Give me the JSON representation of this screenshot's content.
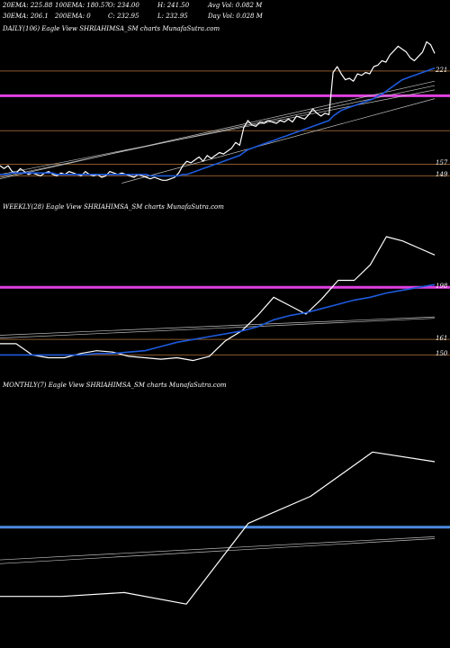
{
  "header": {
    "row1": [
      {
        "key": "ema20",
        "text": "20EMA: 225.88"
      },
      {
        "key": "ema100",
        "text": "100EMA: 180.57"
      },
      {
        "key": "open",
        "text": "O: 234.00"
      },
      {
        "key": "high",
        "text": "H: 241.50"
      },
      {
        "key": "avgvol",
        "text": "Avg Vol: 0.082  M"
      }
    ],
    "row2": [
      {
        "key": "ema30",
        "text": "30EMA: 206.1"
      },
      {
        "key": "ema200",
        "text": "200EMA: 0"
      },
      {
        "key": "close",
        "text": "C: 232.95"
      },
      {
        "key": "low",
        "text": "L: 232.95"
      },
      {
        "key": "dayvol",
        "text": "Day Vol: 0.028  M"
      }
    ]
  },
  "colors": {
    "background": "#000000",
    "price": "#ffffff",
    "ema": "#1e5adc",
    "magenta_level": "#e040e0",
    "brown_level": "#8b5a2b",
    "blue_level": "#4a8ae0",
    "trend": "#bdbdbd"
  },
  "chart_data": [
    {
      "type": "line",
      "title": "DAILY(106) Eagle  View  SHRIAHIMSA_SM charts MunafaSutra.com",
      "ylim": [
        140,
        245
      ],
      "y_labels": [
        221,
        157,
        149
      ],
      "series": [
        {
          "role": "price",
          "values": [
            156,
            154,
            156,
            152,
            151,
            154,
            152,
            150,
            151,
            150,
            149,
            151,
            152,
            150,
            149,
            151,
            150,
            152,
            151,
            150,
            149,
            152,
            150,
            149,
            150,
            148,
            149,
            152,
            151,
            150,
            151,
            150,
            149,
            148,
            150,
            149,
            148,
            147,
            148,
            147,
            146,
            146,
            147,
            148,
            151,
            156,
            159,
            158,
            160,
            162,
            159,
            163,
            161,
            163,
            165,
            164,
            166,
            168,
            172,
            170,
            182,
            187,
            184,
            183,
            186,
            185,
            187,
            186,
            185,
            187,
            186,
            188,
            186,
            190,
            189,
            188,
            191,
            195,
            192,
            190,
            192,
            191,
            220,
            224,
            219,
            215,
            216,
            214,
            219,
            218,
            220,
            219,
            224,
            225,
            228,
            227,
            232,
            235,
            238,
            236,
            234,
            230,
            228,
            231,
            234,
            241,
            239,
            233
          ]
        },
        {
          "role": "ema",
          "values": [
            150,
            150,
            150,
            151,
            151,
            151,
            151,
            151,
            151,
            151,
            151,
            151,
            151,
            151,
            150,
            150,
            150,
            150,
            150,
            150,
            150,
            150,
            150,
            150,
            150,
            150,
            150,
            150,
            150,
            150,
            150,
            150,
            150,
            150,
            150,
            150,
            150,
            149,
            149,
            149,
            149,
            149,
            149,
            149,
            149,
            150,
            150,
            151,
            152,
            153,
            154,
            155,
            156,
            157,
            158,
            159,
            160,
            161,
            162,
            163,
            165,
            167,
            168,
            169,
            170,
            171,
            172,
            173,
            174,
            175,
            176,
            177,
            178,
            179,
            180,
            181,
            182,
            183,
            184,
            185,
            186,
            187,
            190,
            192,
            194,
            195,
            196,
            197,
            198,
            199,
            200,
            201,
            202,
            204,
            205,
            207,
            209,
            211,
            213,
            215,
            216,
            217,
            218,
            219,
            220,
            221,
            222,
            223
          ]
        }
      ],
      "levels": [
        {
          "value": 221,
          "color": "brown"
        },
        {
          "value": 204,
          "color": "magenta"
        },
        {
          "value": 180,
          "color": "brown"
        },
        {
          "value": 157,
          "color": "brown"
        },
        {
          "value": 149,
          "color": "brown"
        }
      ],
      "trendlines": [
        {
          "from": [
            0,
            150
          ],
          "to": [
            107,
            208
          ]
        },
        {
          "from": [
            0,
            148
          ],
          "to": [
            107,
            211
          ]
        },
        {
          "from": [
            0,
            147
          ],
          "to": [
            107,
            214
          ]
        },
        {
          "from": [
            30,
            144
          ],
          "to": [
            107,
            202
          ]
        }
      ]
    },
    {
      "type": "line",
      "title": "WEEKLY(28) Eagle  View  SHRIAHIMSA_SM charts MunafaSutra.com",
      "ylim": [
        140,
        250
      ],
      "y_labels": [
        198,
        161,
        150
      ],
      "series": [
        {
          "role": "price",
          "values": [
            158,
            158,
            150,
            148,
            148,
            151,
            153,
            152,
            149,
            148,
            147,
            148,
            146,
            149,
            160,
            167,
            178,
            191,
            185,
            179,
            190,
            203,
            203,
            214,
            234,
            231,
            226,
            221
          ]
        },
        {
          "role": "ema",
          "values": [
            150,
            150,
            150,
            150,
            150,
            150,
            151,
            151,
            152,
            153,
            156,
            159,
            161,
            163,
            165,
            167,
            170,
            175,
            178,
            180,
            183,
            186,
            189,
            191,
            194,
            196,
            198,
            200
          ]
        }
      ],
      "levels": [
        {
          "value": 198,
          "color": "magenta"
        },
        {
          "value": 161,
          "color": "brown"
        },
        {
          "value": 150,
          "color": "brown"
        }
      ],
      "trendlines": [
        {
          "from": [
            0,
            162
          ],
          "to": [
            27,
            176
          ]
        },
        {
          "from": [
            0,
            164
          ],
          "to": [
            27,
            177
          ]
        }
      ]
    },
    {
      "type": "line",
      "title": "MONTHLY(7) Eagle  View  SHRIAHIMSA_SM charts MunafaSutra.com",
      "ylim": [
        130,
        260
      ],
      "y_labels": [],
      "series": [
        {
          "role": "price",
          "values": [
            154,
            154,
            156,
            150,
            192,
            206,
            229,
            224
          ]
        }
      ],
      "levels": [
        {
          "value": 190,
          "color": "blue"
        }
      ],
      "trendlines": [
        {
          "from": [
            0,
            171
          ],
          "to": [
            7,
            184
          ]
        },
        {
          "from": [
            0,
            173
          ],
          "to": [
            7,
            185
          ]
        }
      ]
    }
  ]
}
